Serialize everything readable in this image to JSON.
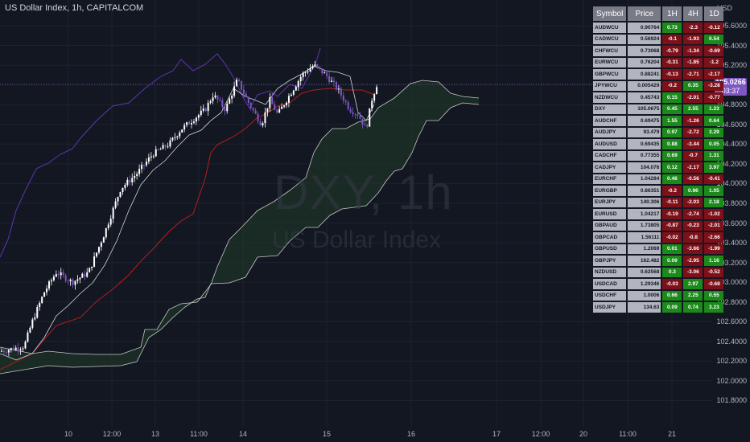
{
  "header": {
    "title": "US Dollar Index, 1h, CAPITALCOM"
  },
  "watermark": {
    "symbol": "DXY, 1h",
    "name": "US Dollar Index"
  },
  "price_axis": {
    "currency": "USD",
    "ticks": [
      "105.6000",
      "105.4000",
      "105.2000",
      "105.0000",
      "104.8000",
      "104.6000",
      "104.4000",
      "104.2000",
      "104.0000",
      "103.8000",
      "103.6000",
      "103.4000",
      "103.2000",
      "103.0000",
      "102.8000",
      "102.6000",
      "102.4000",
      "102.2000",
      "102.0000",
      "101.8000"
    ],
    "last_price": "105.0266",
    "countdown": "03:37"
  },
  "time_axis": {
    "ticks": [
      "10",
      "12:00",
      "13",
      "11:00",
      "14",
      "15",
      "16",
      "17",
      "12:00",
      "20",
      "11:00",
      "21"
    ]
  },
  "screener": {
    "headers": [
      "Symbol",
      "Price",
      "1H",
      "4H",
      "1D"
    ],
    "rows": [
      {
        "symbol": "AUDWCU",
        "price": "0.90764",
        "h1": "0.73",
        "h4": "-2.3",
        "d1": "-0.12"
      },
      {
        "symbol": "CADWCU",
        "price": "0.56924",
        "h1": "-0.1",
        "h4": "-1.93",
        "d1": "0.54"
      },
      {
        "symbol": "CHFWCU",
        "price": "0.73068",
        "h1": "-0.79",
        "h4": "-1.34",
        "d1": "-0.69"
      },
      {
        "symbol": "EURWCU",
        "price": "0.76204",
        "h1": "-0.31",
        "h4": "-1.85",
        "d1": "-1.2"
      },
      {
        "symbol": "GBPWCU",
        "price": "0.88241",
        "h1": "-0.13",
        "h4": "-2.71",
        "d1": "-2.17"
      },
      {
        "symbol": "JPYWCU",
        "price": "0.005429",
        "h1": "-0.2",
        "h4": "0.35",
        "d1": "-3.28"
      },
      {
        "symbol": "NZDWCU",
        "price": "0.45743",
        "h1": "0.15",
        "h4": "-2.01",
        "d1": "-0.77"
      },
      {
        "symbol": "DXY",
        "price": "105.0675",
        "h1": "0.45",
        "h4": "2.55",
        "d1": "1.23"
      },
      {
        "symbol": "AUDCHF",
        "price": "0.69475",
        "h1": "1.55",
        "h4": "-1.26",
        "d1": "0.64"
      },
      {
        "symbol": "AUDJPY",
        "price": "93.479",
        "h1": "0.97",
        "h4": "-2.72",
        "d1": "3.29"
      },
      {
        "symbol": "AUDUSD",
        "price": "0.69435",
        "h1": "0.88",
        "h4": "-3.44",
        "d1": "0.05"
      },
      {
        "symbol": "CADCHF",
        "price": "0.77355",
        "h1": "0.69",
        "h4": "-0.7",
        "d1": "1.31"
      },
      {
        "symbol": "CADJPY",
        "price": "104.076",
        "h1": "0.12",
        "h4": "-2.17",
        "d1": "3.97"
      },
      {
        "symbol": "EURCHF",
        "price": "1.04284",
        "h1": "0.46",
        "h4": "-0.56",
        "d1": "-0.41"
      },
      {
        "symbol": "EURGBP",
        "price": "0.86351",
        "h1": "-0.2",
        "h4": "0.96",
        "d1": "1.05"
      },
      {
        "symbol": "EURJPY",
        "price": "140.306",
        "h1": "-0.11",
        "h4": "-2.03",
        "d1": "2.18"
      },
      {
        "symbol": "EURUSD",
        "price": "1.04217",
        "h1": "-0.19",
        "h4": "-2.74",
        "d1": "-1.02"
      },
      {
        "symbol": "GBPAUD",
        "price": "1.73805",
        "h1": "-0.87",
        "h4": "-0.23",
        "d1": "-2.01"
      },
      {
        "symbol": "GBPCAD",
        "price": "1.56111",
        "h1": "-0.02",
        "h4": "-0.8",
        "d1": "-2.66"
      },
      {
        "symbol": "GBPUSD",
        "price": "1.2069",
        "h1": "0.01",
        "h4": "-3.66",
        "d1": "-1.99"
      },
      {
        "symbol": "GBPJPY",
        "price": "162.482",
        "h1": "0.09",
        "h4": "-2.95",
        "d1": "1.16"
      },
      {
        "symbol": "NZDUSD",
        "price": "0.62568",
        "h1": "0.3",
        "h4": "-3.06",
        "d1": "-0.52"
      },
      {
        "symbol": "USDCAD",
        "price": "1.29346",
        "h1": "-0.03",
        "h4": "2.97",
        "d1": "-0.68"
      },
      {
        "symbol": "USDCHF",
        "price": "1.0006",
        "h1": "0.66",
        "h4": "2.25",
        "d1": "0.55"
      },
      {
        "symbol": "USDJPY",
        "price": "134.63",
        "h1": "0.09",
        "h4": "0.74",
        "d1": "3.23"
      }
    ]
  },
  "colors": {
    "background": "#131722",
    "up_candle": "#ffffff",
    "down_candle": "#7e57c2",
    "cloud_fill": "#1e3326",
    "base_line": "#b71c1c",
    "conversion_line": "#d1d4dc",
    "lagging_line": "#5e35b1",
    "positive": "#1b8a1b",
    "negative": "#7e1019"
  }
}
